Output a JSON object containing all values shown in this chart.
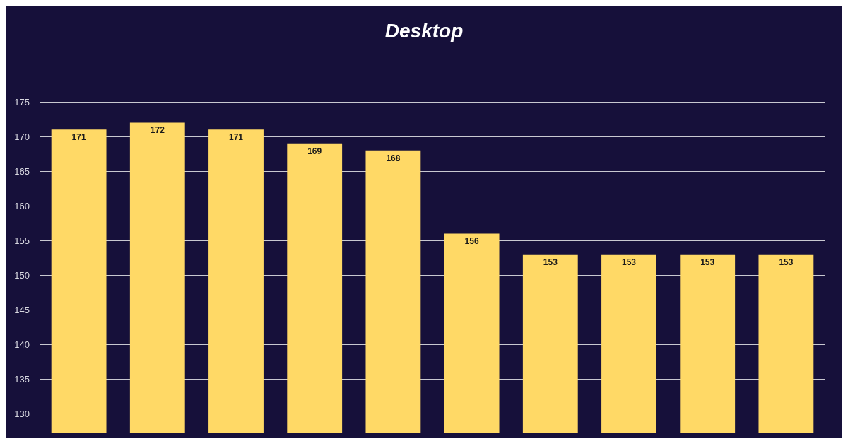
{
  "chart_data": {
    "type": "bar",
    "title": "Desktop",
    "categories": [
      null,
      null,
      null,
      null,
      null,
      null,
      null,
      null,
      null,
      null
    ],
    "values": [
      171,
      172,
      171,
      169,
      168,
      156,
      153,
      153,
      153,
      153
    ],
    "color": "#ffd966",
    "ylim": [
      127.3,
      175
    ],
    "yticks": [
      130,
      135,
      140,
      145,
      150,
      155,
      160,
      165,
      170,
      175
    ],
    "grid": "y",
    "data_labels": true
  }
}
